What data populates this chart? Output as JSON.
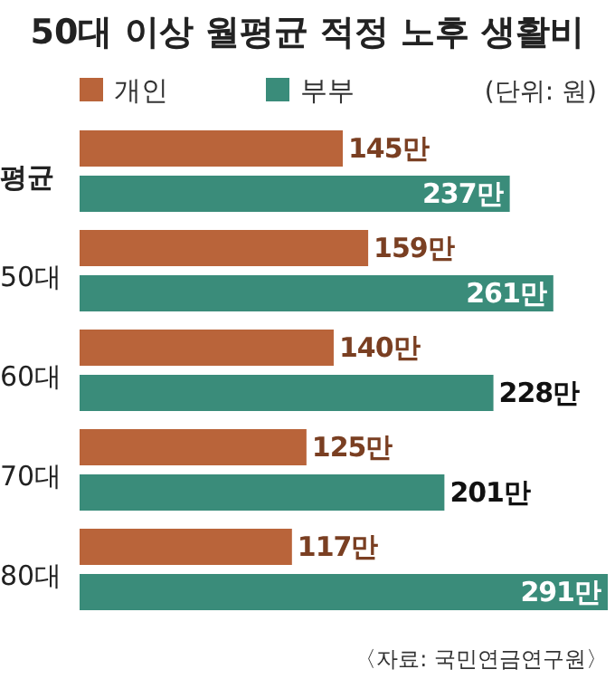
{
  "chart_data": {
    "type": "bar",
    "orientation": "horizontal",
    "title": "50대 이상 월평균 적정 노후 생활비",
    "categories": [
      "평균",
      "50대",
      "60대",
      "70대",
      "80대"
    ],
    "series": [
      {
        "name": "개인",
        "color": "#b9643a",
        "values": [
          145,
          159,
          140,
          125,
          117
        ],
        "value_labels": [
          "145만",
          "159만",
          "140만",
          "125만",
          "117만"
        ]
      },
      {
        "name": "부부",
        "color": "#3a8c7a",
        "values": [
          237,
          261,
          228,
          201,
          291
        ],
        "value_labels": [
          "237만",
          "261만",
          "228만",
          "201만",
          "291만"
        ]
      }
    ],
    "legend": "top",
    "annotations": [
      "(단위: 원)",
      "〈자료: 국민연금연구원〉"
    ]
  }
}
